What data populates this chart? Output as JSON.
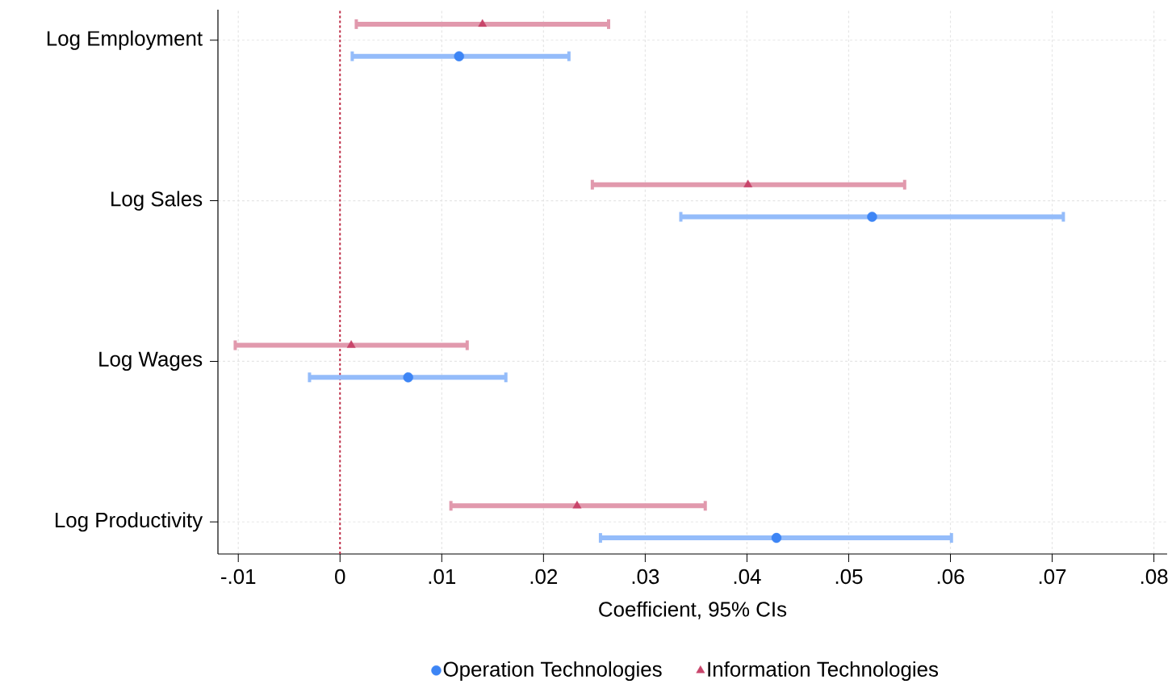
{
  "chart_data": {
    "type": "scatter",
    "orientation": "horizontal",
    "categories": [
      "Log Employment",
      "Log Sales",
      "Log Wages",
      "Log Productivity"
    ],
    "series": [
      {
        "name": "Operation Technologies",
        "color": "#3d85f5",
        "marker": "circle",
        "values": [
          0.0117,
          0.0523,
          0.0067,
          0.0429
        ],
        "errors": [
          [
            0.0012,
            0.0225
          ],
          [
            0.0335,
            0.0711
          ],
          [
            -0.003,
            0.0163
          ],
          [
            0.0256,
            0.0601
          ]
        ]
      },
      {
        "name": "Information Technologies",
        "color": "#c8456a",
        "marker": "triangle",
        "values": [
          0.014,
          0.0401,
          0.0011,
          0.0233
        ],
        "errors": [
          [
            0.0016,
            0.0264
          ],
          [
            0.0248,
            0.0555
          ],
          [
            -0.0103,
            0.0125
          ],
          [
            0.0109,
            0.0359
          ]
        ]
      }
    ],
    "xlim": [
      -0.012,
      0.0813
    ],
    "xticks": [
      {
        "value": -0.01,
        "label": "-.01"
      },
      {
        "value": 0,
        "label": "0"
      },
      {
        "value": 0.01,
        "label": ".01"
      },
      {
        "value": 0.02,
        "label": ".02"
      },
      {
        "value": 0.03,
        "label": ".03"
      },
      {
        "value": 0.04,
        "label": ".04"
      },
      {
        "value": 0.05,
        "label": ".05"
      },
      {
        "value": 0.06,
        "label": ".06"
      },
      {
        "value": 0.07,
        "label": ".07"
      },
      {
        "value": 0.08,
        "label": ".08"
      }
    ],
    "xlabel": "Coefficient, 95% CIs",
    "grid": true,
    "legend": "bottom",
    "ref_lines": [
      {
        "axis": "x",
        "value": 0,
        "color": "#c0304a",
        "line_style": "dashed"
      }
    ]
  }
}
